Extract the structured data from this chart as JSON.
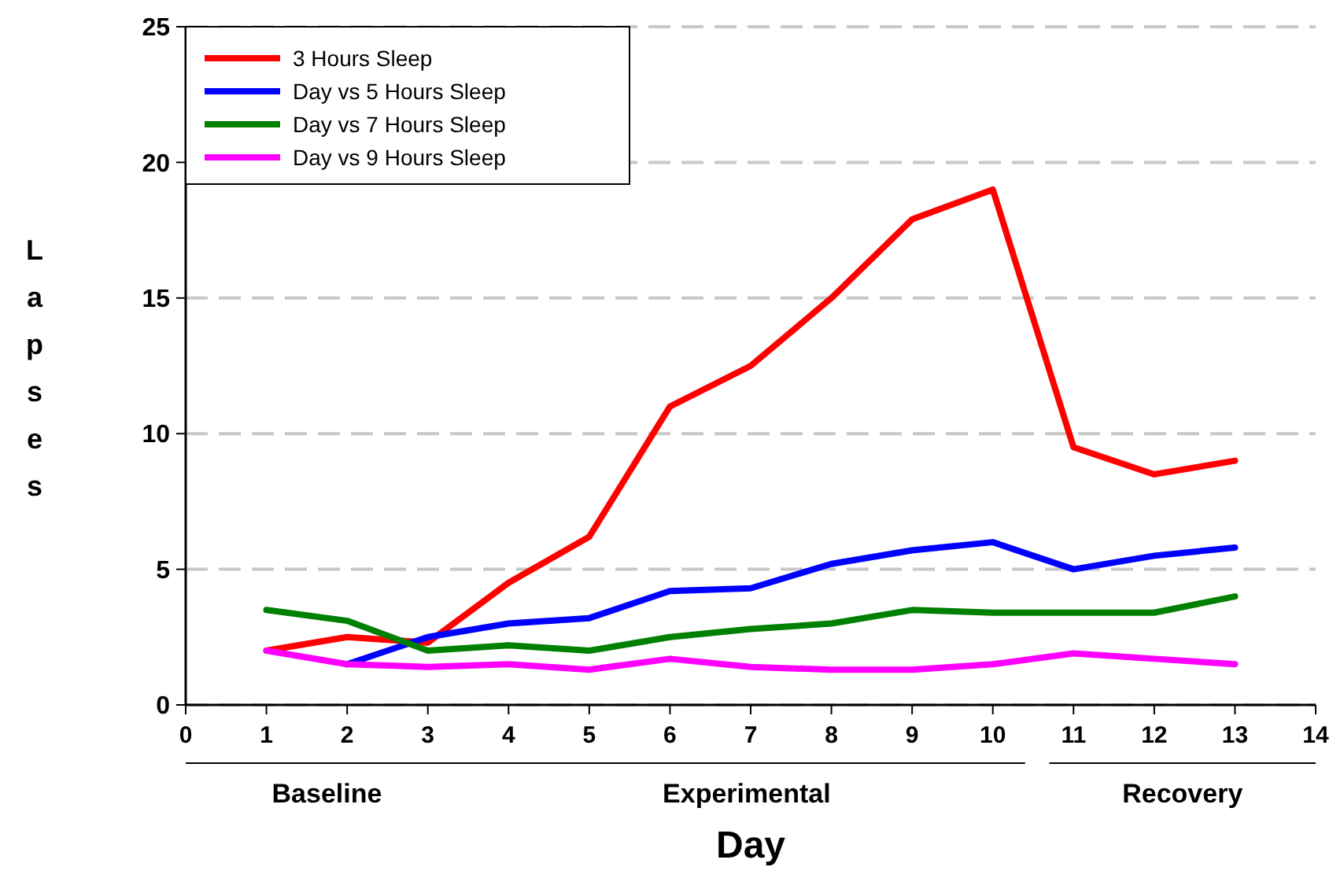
{
  "chart_data": {
    "type": "line",
    "xlabel": "Day",
    "ylabel": "Lapses",
    "x": [
      1,
      2,
      3,
      4,
      5,
      6,
      7,
      8,
      9,
      10,
      11,
      12,
      13
    ],
    "xlim": [
      0,
      14
    ],
    "xticks": [
      0,
      1,
      2,
      3,
      4,
      5,
      6,
      7,
      8,
      9,
      10,
      11,
      12,
      13,
      14
    ],
    "ylim": [
      0,
      25
    ],
    "yticks": [
      0,
      5,
      10,
      15,
      20,
      25
    ],
    "grid": "y",
    "legend": "top left",
    "marker": "none",
    "annotations": [
      "Baseline",
      "Experimental",
      "Recovery"
    ],
    "series": [
      {
        "name": "3 Hours Sleep",
        "color": "#ff0000",
        "values": [
          2,
          2.5,
          2.3,
          4.5,
          6.2,
          11,
          12.5,
          15,
          17.9,
          19,
          9.5,
          8.5,
          9
        ]
      },
      {
        "name": "Day vs 5 Hours Sleep",
        "color": "#0000ff",
        "values": [
          null,
          1.5,
          2.5,
          3,
          3.2,
          4.2,
          4.3,
          5.2,
          5.7,
          6,
          5,
          5.5,
          5.8
        ]
      },
      {
        "name": "Day vs 7 Hours Sleep",
        "color": "#008000",
        "values": [
          3.5,
          3.1,
          2,
          2.2,
          2,
          2.5,
          2.8,
          3,
          3.5,
          3.4,
          3.4,
          3.4,
          4
        ]
      },
      {
        "name": "Day vs 9 Hours Sleep",
        "color": "#ff00ff",
        "values": [
          2,
          1.5,
          1.4,
          1.5,
          1.3,
          1.7,
          1.4,
          1.3,
          1.3,
          1.5,
          1.9,
          1.7,
          1.5
        ]
      }
    ]
  }
}
